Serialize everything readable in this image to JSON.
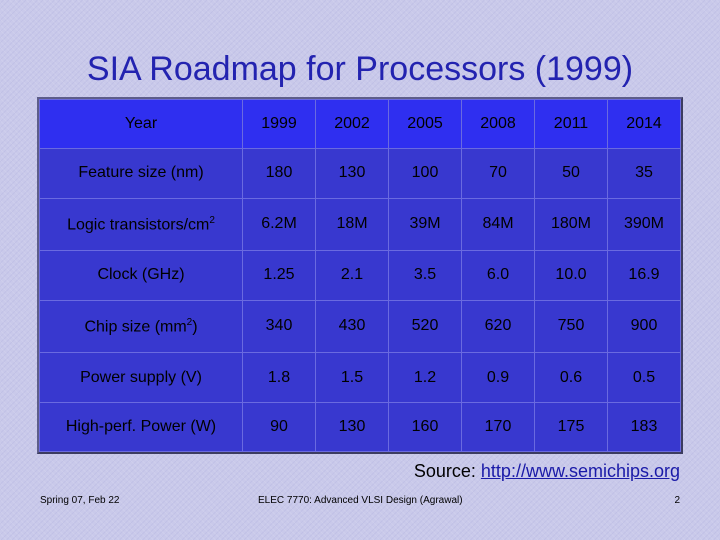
{
  "slide": {
    "title": "SIA Roadmap for Processors (1999)",
    "source_label": "Source:",
    "source_link": "http://www.semichips.org",
    "footer_left": "Spring 07, Feb 22",
    "footer_center": "ELEC 7770: Advanced VLSI Design (Agrawal)",
    "footer_right": "2"
  },
  "table": {
    "header": [
      "Year",
      "1999",
      "2002",
      "2005",
      "2008",
      "2011",
      "2014"
    ],
    "rows": [
      {
        "label": "Feature size (nm)",
        "values": [
          "180",
          "130",
          "100",
          "70",
          "50",
          "35"
        ]
      },
      {
        "label": "Logic transistors/cm",
        "label_sup": "2",
        "values": [
          "6.2M",
          "18M",
          "39M",
          "84M",
          "180M",
          "390M"
        ]
      },
      {
        "label": "Clock (GHz)",
        "values": [
          "1.25",
          "2.1",
          "3.5",
          "6.0",
          "10.0",
          "16.9"
        ]
      },
      {
        "label": "Chip size (mm",
        "label_sup": "2",
        "label_suffix": ")",
        "values": [
          "340",
          "430",
          "520",
          "620",
          "750",
          "900"
        ]
      },
      {
        "label": "Power supply (V)",
        "values": [
          "1.8",
          "1.5",
          "1.2",
          "0.9",
          "0.6",
          "0.5"
        ]
      },
      {
        "label": "High-perf. Power (W)",
        "values": [
          "90",
          "130",
          "160",
          "170",
          "175",
          "183"
        ]
      }
    ]
  },
  "colors": {
    "title": "#2323b0",
    "table_header": "#2f2ff0",
    "table_body": "#3838cf",
    "background": "#c9c9ea"
  }
}
